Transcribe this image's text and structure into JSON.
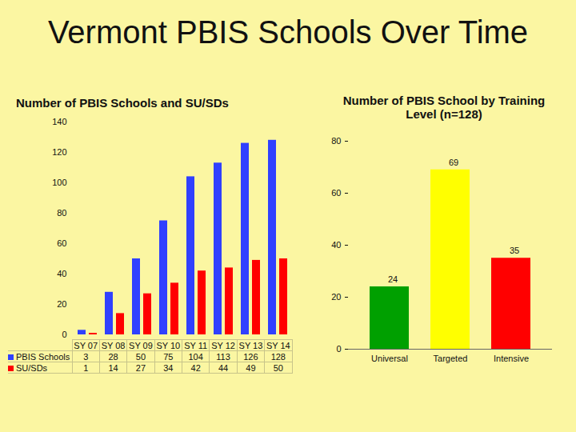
{
  "title": "Vermont PBIS Schools Over Time",
  "chart_data": [
    {
      "type": "bar",
      "title": "Number of PBIS Schools and SU/SDs",
      "categories": [
        "SY 07",
        "SY 08",
        "SY 09",
        "SY 10",
        "SY 11",
        "SY 12",
        "SY 13",
        "SY 14"
      ],
      "series": [
        {
          "name": "PBIS Schools",
          "color": "#3040ff",
          "values": [
            3,
            28,
            50,
            75,
            104,
            113,
            126,
            128
          ]
        },
        {
          "name": "SU/SDs",
          "color": "#ff0000",
          "values": [
            1,
            14,
            27,
            34,
            42,
            44,
            49,
            50
          ]
        }
      ],
      "ylim": [
        0,
        140
      ],
      "yticks": [
        0,
        20,
        40,
        60,
        80,
        100,
        120,
        140
      ],
      "tick_labels": "y"
    },
    {
      "type": "bar",
      "title": "Number of PBIS School by Training Level (n=128)",
      "categories": [
        "Universal",
        "Targeted",
        "Intensive"
      ],
      "values": [
        24,
        69,
        35
      ],
      "colors": [
        "#00a000",
        "#ffff00",
        "#ff0000"
      ],
      "ylim": [
        0,
        80
      ],
      "yticks": [
        0,
        20,
        40,
        60,
        80
      ],
      "data_labels": true
    }
  ]
}
